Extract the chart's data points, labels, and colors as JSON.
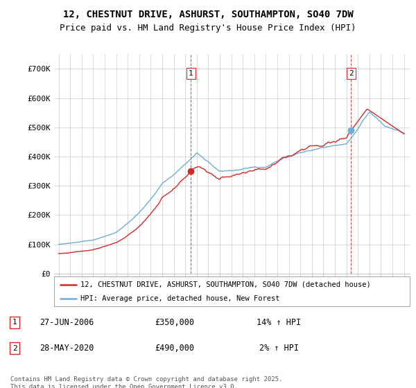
{
  "title_line1": "12, CHESTNUT DRIVE, ASHURST, SOUTHAMPTON, SO40 7DW",
  "title_line2": "Price paid vs. HM Land Registry's House Price Index (HPI)",
  "ylim": [
    0,
    750000
  ],
  "yticks": [
    0,
    100000,
    200000,
    300000,
    400000,
    500000,
    600000,
    700000
  ],
  "ytick_labels": [
    "£0",
    "£100K",
    "£200K",
    "£300K",
    "£400K",
    "£500K",
    "£600K",
    "£700K"
  ],
  "hpi_color": "#6baed6",
  "price_color": "#d62728",
  "vline_color": "#d62728",
  "sale1_date": "27-JUN-2006",
  "sale1_price": "£350,000",
  "sale1_hpi": "14% ↑ HPI",
  "sale1_year": 2006.49,
  "sale2_date": "28-MAY-2020",
  "sale2_price": "£490,000",
  "sale2_hpi": "2% ↑ HPI",
  "sale2_year": 2020.41,
  "sale1_price_val": 350000,
  "sale2_price_val": 490000,
  "legend_label1": "12, CHESTNUT DRIVE, ASHURST, SOUTHAMPTON, SO40 7DW (detached house)",
  "legend_label2": "HPI: Average price, detached house, New Forest",
  "footnote": "Contains HM Land Registry data © Crown copyright and database right 2025.\nThis data is licensed under the Open Government Licence v3.0.",
  "bg_color": "#ffffff",
  "grid_color": "#cccccc",
  "title_fontsize": 10,
  "subtitle_fontsize": 9
}
